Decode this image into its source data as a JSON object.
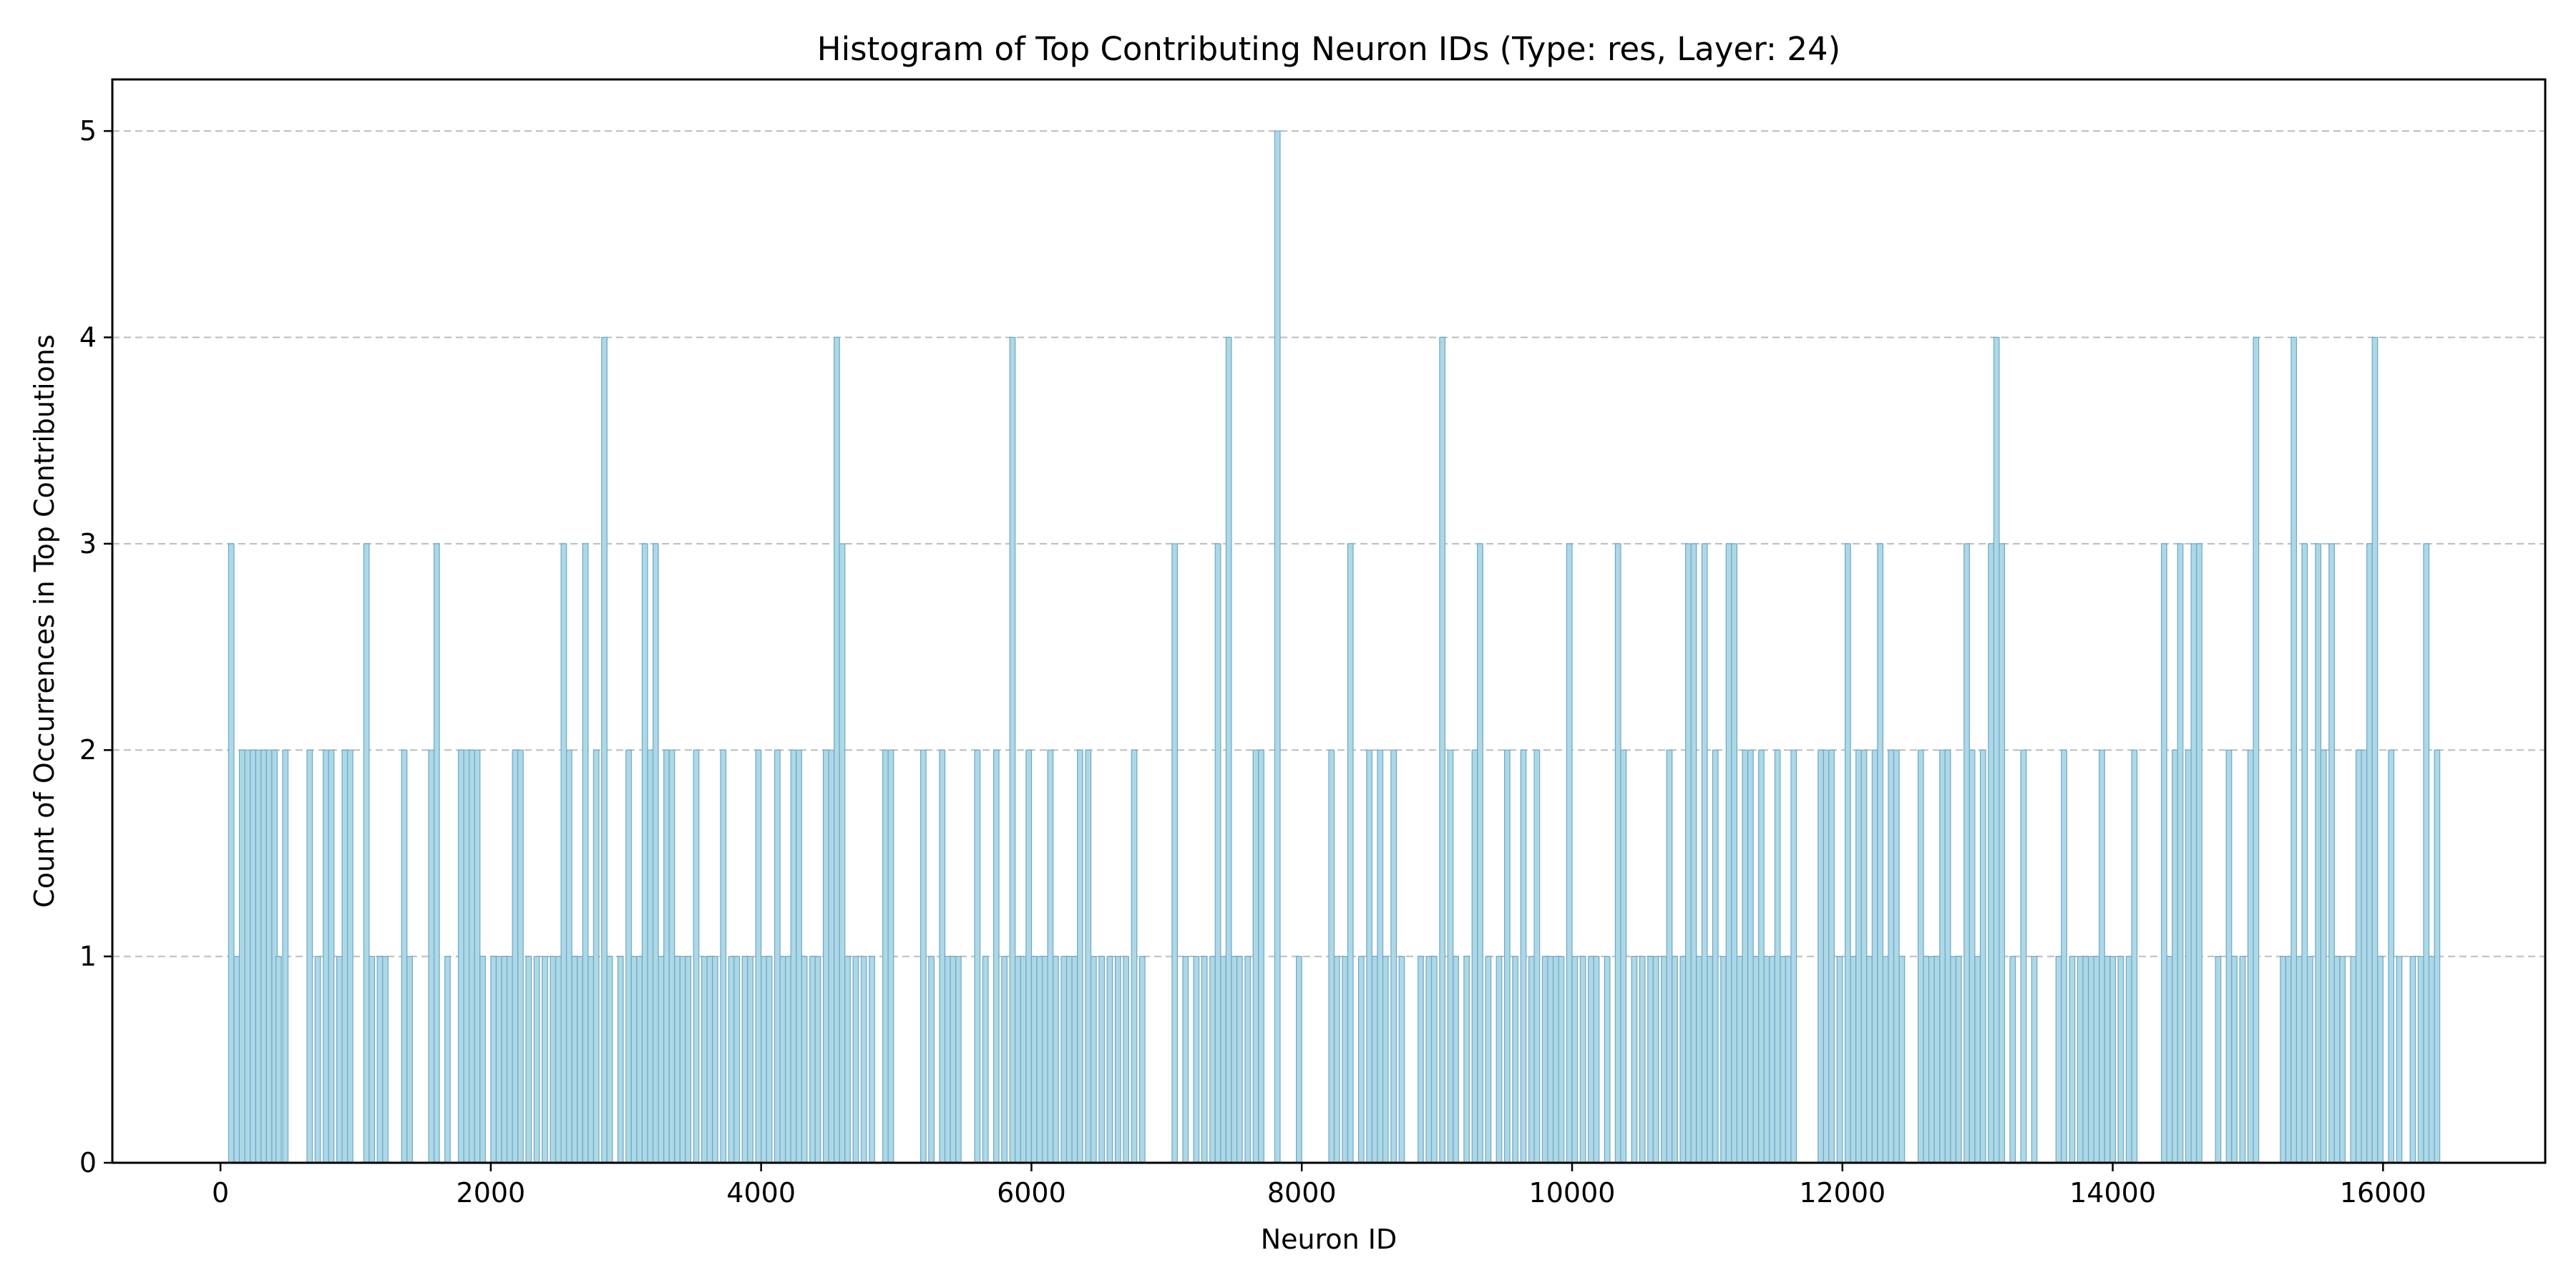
{
  "chart_data": {
    "type": "bar",
    "title": "Histogram of Top Contributing Neuron IDs (Type: res, Layer: 24)",
    "xlabel": "Neuron ID",
    "ylabel": "Count of Occurrences in Top Contributions",
    "xlim": [
      -800,
      17200
    ],
    "ylim": [
      0,
      5.25
    ],
    "xticks": [
      0,
      2000,
      4000,
      6000,
      8000,
      10000,
      12000,
      14000,
      16000
    ],
    "yticks": [
      0,
      1,
      2,
      3,
      4,
      5
    ],
    "grid": "horizontal dashed",
    "legend": "none",
    "bar_color": "#add8e6",
    "edge_color": "#6fa8c8",
    "bins": [
      [
        60,
        3
      ],
      [
        100,
        1
      ],
      [
        140,
        2
      ],
      [
        180,
        2
      ],
      [
        220,
        2
      ],
      [
        260,
        2
      ],
      [
        300,
        2
      ],
      [
        340,
        2
      ],
      [
        380,
        2
      ],
      [
        410,
        1
      ],
      [
        460,
        2
      ],
      [
        640,
        2
      ],
      [
        700,
        1
      ],
      [
        760,
        2
      ],
      [
        800,
        2
      ],
      [
        860,
        1
      ],
      [
        900,
        2
      ],
      [
        940,
        2
      ],
      [
        1060,
        3
      ],
      [
        1100,
        1
      ],
      [
        1160,
        1
      ],
      [
        1200,
        1
      ],
      [
        1340,
        2
      ],
      [
        1380,
        1
      ],
      [
        1540,
        2
      ],
      [
        1580,
        3
      ],
      [
        1660,
        1
      ],
      [
        1760,
        2
      ],
      [
        1800,
        2
      ],
      [
        1840,
        2
      ],
      [
        1880,
        2
      ],
      [
        1920,
        1
      ],
      [
        2000,
        1
      ],
      [
        2040,
        1
      ],
      [
        2080,
        1
      ],
      [
        2120,
        1
      ],
      [
        2160,
        2
      ],
      [
        2200,
        2
      ],
      [
        2260,
        1
      ],
      [
        2320,
        1
      ],
      [
        2380,
        1
      ],
      [
        2440,
        1
      ],
      [
        2480,
        1
      ],
      [
        2520,
        3
      ],
      [
        2560,
        2
      ],
      [
        2600,
        1
      ],
      [
        2640,
        1
      ],
      [
        2680,
        3
      ],
      [
        2720,
        1
      ],
      [
        2760,
        2
      ],
      [
        2820,
        4
      ],
      [
        2860,
        1
      ],
      [
        2940,
        1
      ],
      [
        3000,
        2
      ],
      [
        3040,
        1
      ],
      [
        3080,
        1
      ],
      [
        3120,
        3
      ],
      [
        3160,
        2
      ],
      [
        3200,
        3
      ],
      [
        3240,
        1
      ],
      [
        3280,
        2
      ],
      [
        3320,
        2
      ],
      [
        3360,
        1
      ],
      [
        3400,
        1
      ],
      [
        3440,
        1
      ],
      [
        3500,
        2
      ],
      [
        3560,
        1
      ],
      [
        3600,
        1
      ],
      [
        3640,
        1
      ],
      [
        3700,
        2
      ],
      [
        3760,
        1
      ],
      [
        3800,
        1
      ],
      [
        3860,
        1
      ],
      [
        3900,
        1
      ],
      [
        3960,
        2
      ],
      [
        4000,
        1
      ],
      [
        4040,
        1
      ],
      [
        4100,
        2
      ],
      [
        4140,
        1
      ],
      [
        4180,
        1
      ],
      [
        4220,
        2
      ],
      [
        4260,
        2
      ],
      [
        4300,
        1
      ],
      [
        4360,
        1
      ],
      [
        4400,
        1
      ],
      [
        4460,
        2
      ],
      [
        4500,
        2
      ],
      [
        4540,
        4
      ],
      [
        4580,
        3
      ],
      [
        4620,
        1
      ],
      [
        4680,
        1
      ],
      [
        4740,
        1
      ],
      [
        4800,
        1
      ],
      [
        4900,
        2
      ],
      [
        4940,
        2
      ],
      [
        5180,
        2
      ],
      [
        5240,
        1
      ],
      [
        5320,
        2
      ],
      [
        5360,
        1
      ],
      [
        5400,
        1
      ],
      [
        5440,
        1
      ],
      [
        5580,
        2
      ],
      [
        5640,
        1
      ],
      [
        5720,
        2
      ],
      [
        5780,
        1
      ],
      [
        5840,
        4
      ],
      [
        5880,
        1
      ],
      [
        5920,
        1
      ],
      [
        5960,
        2
      ],
      [
        6000,
        1
      ],
      [
        6040,
        1
      ],
      [
        6080,
        1
      ],
      [
        6120,
        2
      ],
      [
        6160,
        1
      ],
      [
        6220,
        1
      ],
      [
        6260,
        1
      ],
      [
        6300,
        1
      ],
      [
        6340,
        2
      ],
      [
        6400,
        2
      ],
      [
        6440,
        1
      ],
      [
        6500,
        1
      ],
      [
        6560,
        1
      ],
      [
        6620,
        1
      ],
      [
        6680,
        1
      ],
      [
        6740,
        2
      ],
      [
        6800,
        1
      ],
      [
        7040,
        3
      ],
      [
        7120,
        1
      ],
      [
        7200,
        1
      ],
      [
        7260,
        1
      ],
      [
        7320,
        1
      ],
      [
        7360,
        3
      ],
      [
        7400,
        1
      ],
      [
        7440,
        4
      ],
      [
        7480,
        1
      ],
      [
        7520,
        1
      ],
      [
        7580,
        1
      ],
      [
        7640,
        2
      ],
      [
        7680,
        2
      ],
      [
        7800,
        5
      ],
      [
        7960,
        1
      ],
      [
        8200,
        2
      ],
      [
        8240,
        1
      ],
      [
        8300,
        1
      ],
      [
        8340,
        3
      ],
      [
        8420,
        1
      ],
      [
        8480,
        2
      ],
      [
        8520,
        1
      ],
      [
        8560,
        2
      ],
      [
        8600,
        1
      ],
      [
        8660,
        2
      ],
      [
        8720,
        1
      ],
      [
        8860,
        1
      ],
      [
        8920,
        1
      ],
      [
        8960,
        1
      ],
      [
        9020,
        4
      ],
      [
        9080,
        2
      ],
      [
        9120,
        1
      ],
      [
        9200,
        1
      ],
      [
        9260,
        2
      ],
      [
        9300,
        3
      ],
      [
        9360,
        1
      ],
      [
        9440,
        1
      ],
      [
        9500,
        2
      ],
      [
        9560,
        1
      ],
      [
        9620,
        2
      ],
      [
        9680,
        1
      ],
      [
        9720,
        2
      ],
      [
        9780,
        1
      ],
      [
        9820,
        1
      ],
      [
        9860,
        1
      ],
      [
        9900,
        1
      ],
      [
        9960,
        3
      ],
      [
        10000,
        1
      ],
      [
        10060,
        1
      ],
      [
        10120,
        1
      ],
      [
        10160,
        1
      ],
      [
        10240,
        1
      ],
      [
        10320,
        3
      ],
      [
        10360,
        2
      ],
      [
        10440,
        1
      ],
      [
        10500,
        1
      ],
      [
        10560,
        1
      ],
      [
        10600,
        1
      ],
      [
        10660,
        1
      ],
      [
        10700,
        2
      ],
      [
        10740,
        1
      ],
      [
        10800,
        1
      ],
      [
        10840,
        3
      ],
      [
        10880,
        3
      ],
      [
        10920,
        1
      ],
      [
        10960,
        3
      ],
      [
        11000,
        1
      ],
      [
        11040,
        2
      ],
      [
        11100,
        1
      ],
      [
        11140,
        3
      ],
      [
        11180,
        3
      ],
      [
        11220,
        1
      ],
      [
        11260,
        2
      ],
      [
        11300,
        2
      ],
      [
        11340,
        1
      ],
      [
        11380,
        2
      ],
      [
        11420,
        1
      ],
      [
        11460,
        1
      ],
      [
        11500,
        2
      ],
      [
        11540,
        1
      ],
      [
        11580,
        1
      ],
      [
        11620,
        2
      ],
      [
        11820,
        2
      ],
      [
        11860,
        2
      ],
      [
        11900,
        2
      ],
      [
        11960,
        1
      ],
      [
        12020,
        3
      ],
      [
        12060,
        1
      ],
      [
        12100,
        2
      ],
      [
        12140,
        2
      ],
      [
        12180,
        1
      ],
      [
        12220,
        2
      ],
      [
        12260,
        3
      ],
      [
        12300,
        1
      ],
      [
        12340,
        2
      ],
      [
        12380,
        2
      ],
      [
        12420,
        1
      ],
      [
        12560,
        2
      ],
      [
        12600,
        1
      ],
      [
        12640,
        1
      ],
      [
        12680,
        1
      ],
      [
        12720,
        2
      ],
      [
        12760,
        2
      ],
      [
        12800,
        1
      ],
      [
        12840,
        1
      ],
      [
        12900,
        3
      ],
      [
        12940,
        2
      ],
      [
        12980,
        1
      ],
      [
        13020,
        2
      ],
      [
        13080,
        3
      ],
      [
        13120,
        4
      ],
      [
        13160,
        3
      ],
      [
        13240,
        1
      ],
      [
        13320,
        2
      ],
      [
        13400,
        1
      ],
      [
        13580,
        1
      ],
      [
        13620,
        2
      ],
      [
        13680,
        1
      ],
      [
        13740,
        1
      ],
      [
        13780,
        1
      ],
      [
        13820,
        1
      ],
      [
        13860,
        1
      ],
      [
        13900,
        2
      ],
      [
        13940,
        1
      ],
      [
        13980,
        1
      ],
      [
        14040,
        1
      ],
      [
        14100,
        1
      ],
      [
        14140,
        2
      ],
      [
        14360,
        3
      ],
      [
        14400,
        1
      ],
      [
        14440,
        2
      ],
      [
        14480,
        3
      ],
      [
        14540,
        2
      ],
      [
        14580,
        3
      ],
      [
        14620,
        3
      ],
      [
        14760,
        1
      ],
      [
        14840,
        2
      ],
      [
        14880,
        1
      ],
      [
        14940,
        1
      ],
      [
        15000,
        2
      ],
      [
        15040,
        4
      ],
      [
        15240,
        1
      ],
      [
        15280,
        1
      ],
      [
        15320,
        4
      ],
      [
        15360,
        1
      ],
      [
        15400,
        3
      ],
      [
        15440,
        1
      ],
      [
        15500,
        3
      ],
      [
        15540,
        2
      ],
      [
        15600,
        3
      ],
      [
        15640,
        1
      ],
      [
        15680,
        1
      ],
      [
        15760,
        1
      ],
      [
        15800,
        2
      ],
      [
        15840,
        2
      ],
      [
        15880,
        3
      ],
      [
        15920,
        4
      ],
      [
        15960,
        1
      ],
      [
        16040,
        2
      ],
      [
        16100,
        1
      ],
      [
        16200,
        1
      ],
      [
        16260,
        1
      ],
      [
        16300,
        3
      ],
      [
        16340,
        1
      ],
      [
        16380,
        2
      ]
    ]
  }
}
